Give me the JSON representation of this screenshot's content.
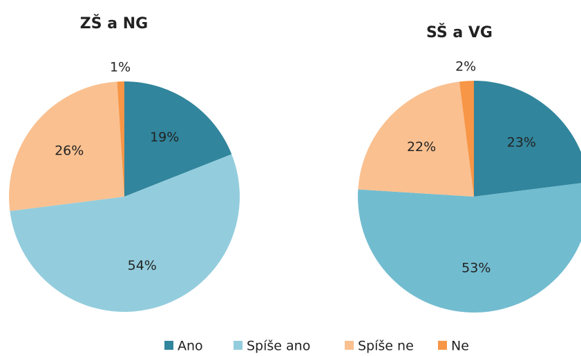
{
  "chart_data": [
    {
      "type": "pie",
      "title": "ZŠ a NG",
      "categories": [
        "Ano",
        "Spíše ano",
        "Spíše ne",
        "Ne"
      ],
      "values": [
        19,
        54,
        26,
        1
      ],
      "value_labels": [
        "19%",
        "54%",
        "26%",
        "1%"
      ],
      "colors": [
        "#31859c",
        "#93cddd",
        "#fac090",
        "#f79646"
      ]
    },
    {
      "type": "pie",
      "title": "SŠ a VG",
      "categories": [
        "Ano",
        "Spíše ano",
        "Spíše ne",
        "Ne"
      ],
      "values": [
        23,
        53,
        22,
        2
      ],
      "value_labels": [
        "23%",
        "53%",
        "22%",
        "2%"
      ],
      "colors": [
        "#31859c",
        "#72bcd0",
        "#fac090",
        "#f79646"
      ]
    }
  ]
}
